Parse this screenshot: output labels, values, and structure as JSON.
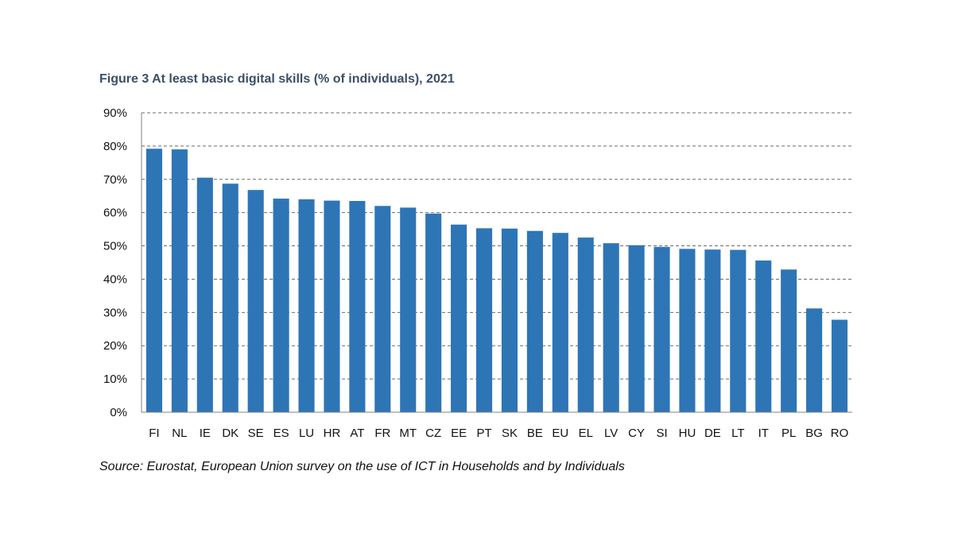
{
  "chart_data": {
    "type": "bar",
    "title": "Figure 3 At least basic digital skills (% of individuals), 2021",
    "source": "Source: Eurostat, European Union survey on the use of ICT in Households and by Individuals",
    "categories": [
      "FI",
      "NL",
      "IE",
      "DK",
      "SE",
      "ES",
      "LU",
      "HR",
      "AT",
      "FR",
      "MT",
      "CZ",
      "EE",
      "PT",
      "SK",
      "BE",
      "EU",
      "EL",
      "LV",
      "CY",
      "SI",
      "HU",
      "DE",
      "LT",
      "IT",
      "PL",
      "BG",
      "RO"
    ],
    "values": [
      79.2,
      79.0,
      70.5,
      68.7,
      66.8,
      64.2,
      64.0,
      63.6,
      63.5,
      62.0,
      61.5,
      59.7,
      56.4,
      55.3,
      55.2,
      54.5,
      53.9,
      52.5,
      50.8,
      50.2,
      49.7,
      49.1,
      48.9,
      48.8,
      45.6,
      42.9,
      31.2,
      27.8
    ],
    "ylim": [
      0,
      90
    ],
    "yticks": [
      0,
      10,
      20,
      30,
      40,
      50,
      60,
      70,
      80,
      90
    ],
    "ytick_labels": [
      "0%",
      "10%",
      "20%",
      "30%",
      "40%",
      "50%",
      "60%",
      "70%",
      "80%",
      "90%"
    ],
    "xlabel": "",
    "ylabel": "",
    "grid": true,
    "legend": "none",
    "bar_color": "#2e75b6"
  }
}
